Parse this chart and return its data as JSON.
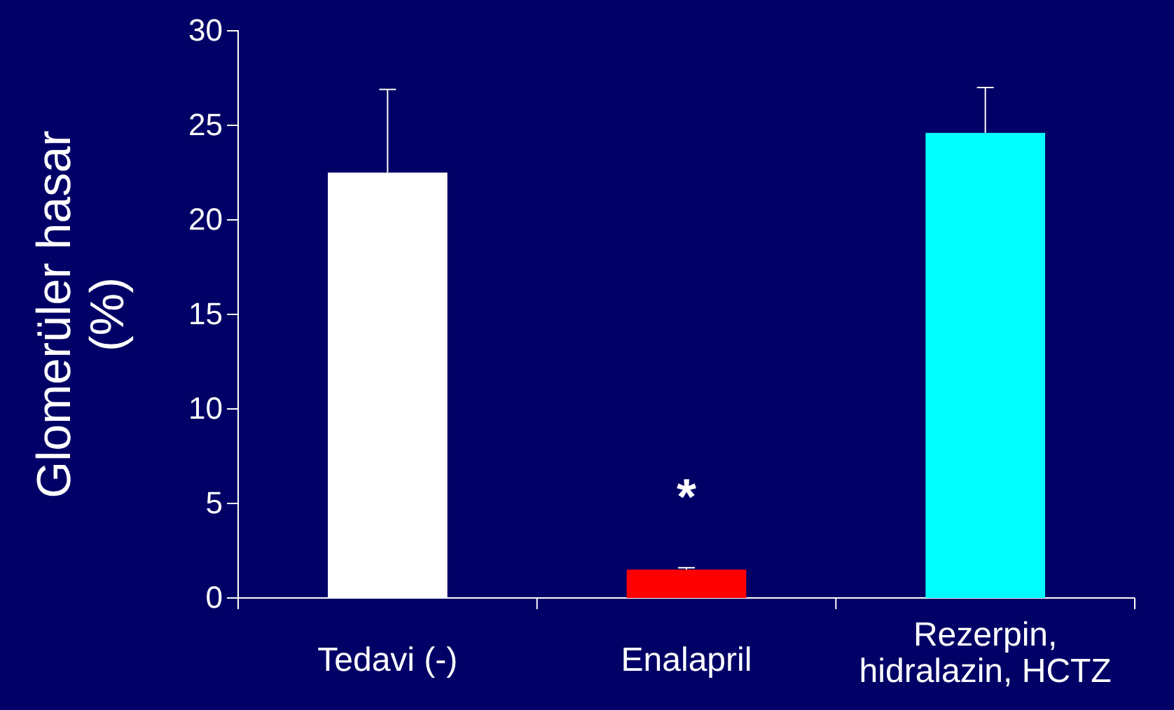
{
  "chart_data": {
    "type": "bar",
    "ylabel": "Glomerüler hasar (%)",
    "categories": [
      "Tedavi (-)",
      "Enalapril",
      "Rezerpin, hidralazin, HCTZ"
    ],
    "values": [
      22.5,
      1.5,
      24.6
    ],
    "colors": [
      "#ffffff",
      "#ff0000",
      "#00ffff"
    ],
    "errors": [
      [
        22.5,
        26.9
      ],
      [
        1.5,
        1.6
      ],
      [
        24.6,
        27.0
      ]
    ],
    "ylim": [
      0,
      30
    ],
    "yticks": [
      0,
      5,
      10,
      15,
      20,
      25,
      30
    ],
    "grid": false,
    "annotations": [
      "*"
    ]
  }
}
